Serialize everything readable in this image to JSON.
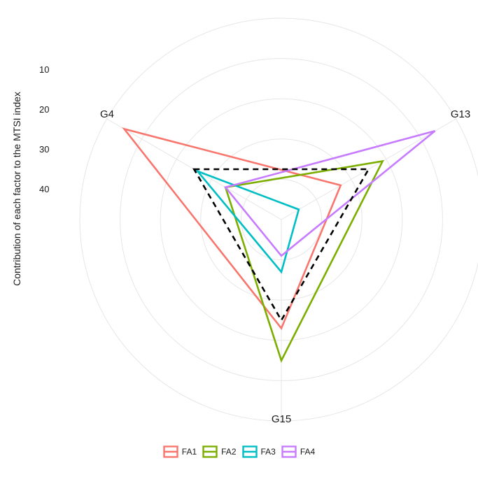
{
  "chart_data": {
    "type": "radar",
    "ylabel": "Contribution of each factor to the MTSI index",
    "axes": [
      "G4",
      "G13",
      "G15"
    ],
    "radial_ticks": [
      10,
      20,
      30,
      40
    ],
    "radial_scale": "inverted",
    "grid": true,
    "legend_position": "bottom",
    "series": [
      {
        "name": "FA1",
        "color": "#F8766D",
        "values": [
          5,
          33,
          23
        ]
      },
      {
        "name": "FA2",
        "color": "#7CAE00",
        "values": [
          34,
          21,
          15
        ]
      },
      {
        "name": "FA3",
        "color": "#00BFC4",
        "values": [
          26,
          45,
          37
        ]
      },
      {
        "name": "FA4",
        "color": "#C77CFF",
        "values": [
          34,
          6,
          41
        ]
      }
    ],
    "reference": {
      "style": "dashed",
      "color": "#000000",
      "values": [
        25,
        25,
        25
      ]
    }
  }
}
